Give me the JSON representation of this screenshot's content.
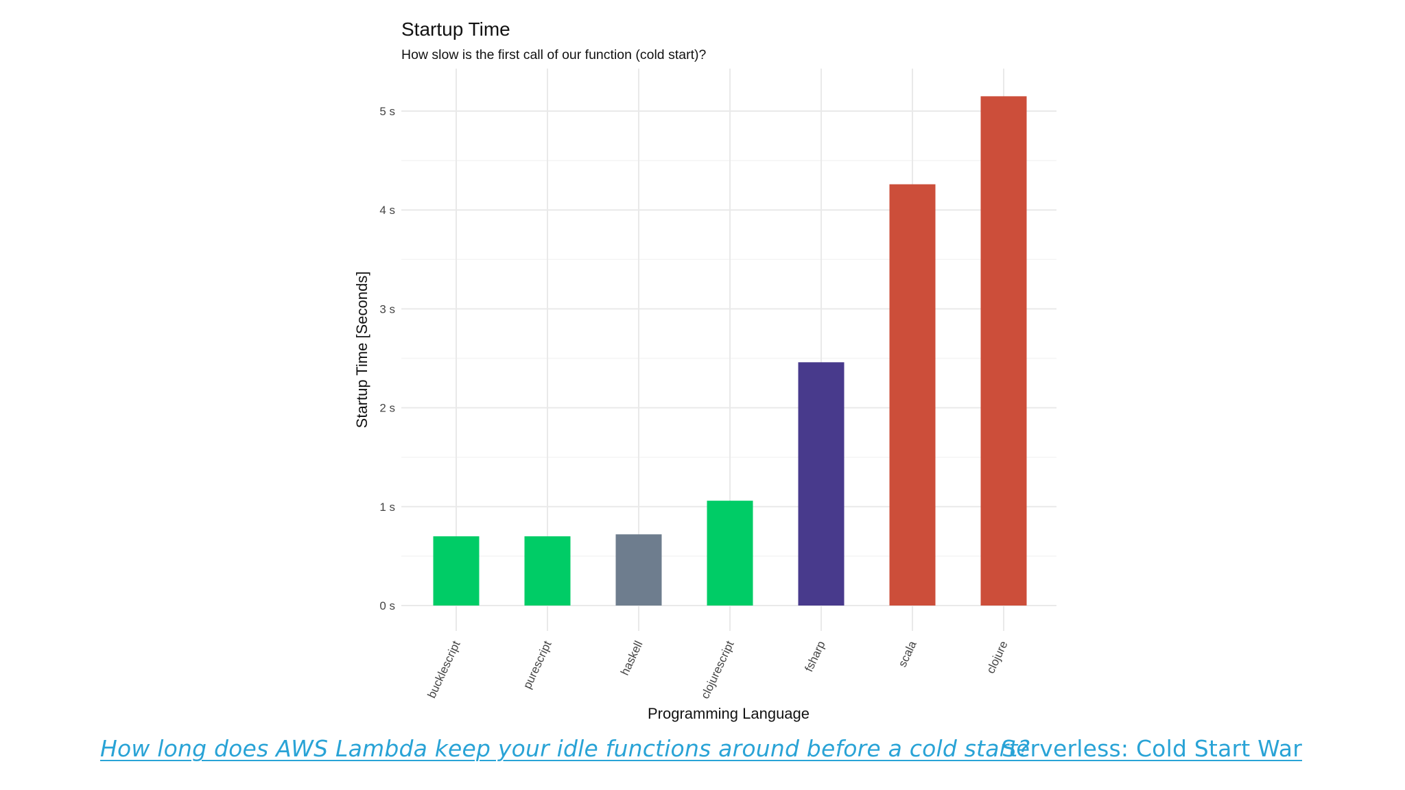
{
  "chart_data": {
    "type": "bar",
    "title": "Startup Time",
    "subtitle": "How slow is the first call of our function (cold start)?",
    "xlabel": "Programming Language",
    "ylabel": "Startup Time [Seconds]",
    "categories": [
      "bucklescript",
      "purescript",
      "haskell",
      "clojurescript",
      "fsharp",
      "scala",
      "clojure"
    ],
    "values": [
      0.7,
      0.7,
      0.72,
      1.06,
      2.46,
      4.26,
      5.15
    ],
    "bar_colors": [
      "#00cc66",
      "#00cc66",
      "#6e7d8e",
      "#00cc66",
      "#483a8c",
      "#cc4e3a",
      "#cc4e3a"
    ],
    "y_ticks": [
      0,
      1,
      2,
      3,
      4,
      5
    ],
    "y_tick_labels": [
      "0 s",
      "1 s",
      "2 s",
      "3 s",
      "4 s",
      "5 s"
    ],
    "ylim": [
      0,
      5.4
    ],
    "grid": true,
    "legend": "none"
  },
  "footer": {
    "link_left": "How long does AWS Lambda keep your idle functions around before a cold start?",
    "link_right": "Serverless: Cold Start War",
    "link_color": "#29a3d6"
  }
}
